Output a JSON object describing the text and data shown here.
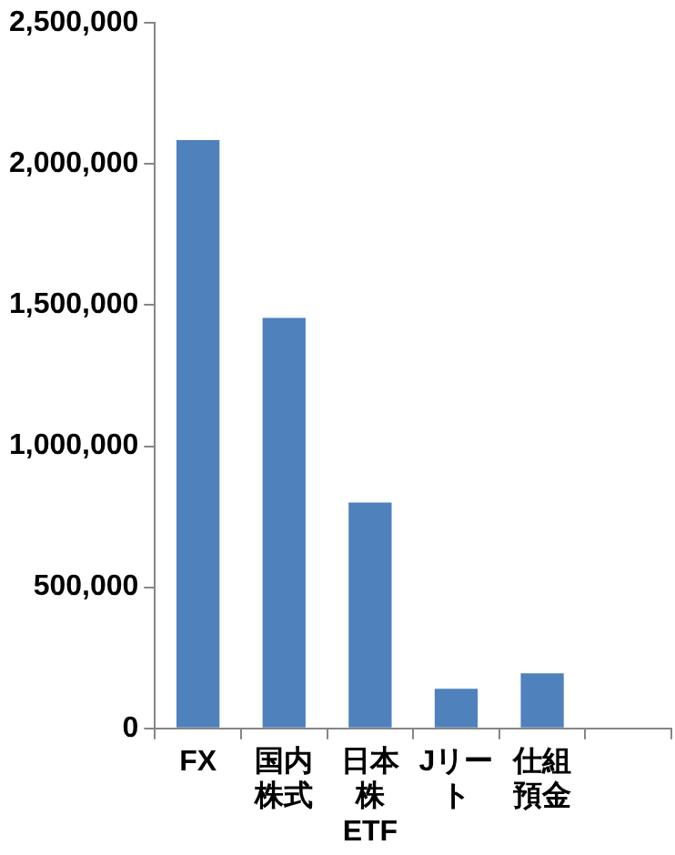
{
  "chart_data": {
    "type": "bar",
    "categories": [
      "FX",
      "国内株式",
      "日本株ETF",
      "Jリート",
      "仕組預金",
      null
    ],
    "values": [
      2085000,
      1455000,
      800000,
      140000,
      195000,
      null
    ],
    "color": "#4f81bd",
    "ylim": [
      0,
      2500000
    ],
    "yticks": [
      {
        "value": 0,
        "label": "0"
      },
      {
        "value": 500000,
        "label": "500,000"
      },
      {
        "value": 1000000,
        "label": "1,000,000"
      },
      {
        "value": 1500000,
        "label": "1,500,000"
      },
      {
        "value": 2000000,
        "label": "2,000,000"
      },
      {
        "value": 2500000,
        "label": "2,500,000"
      }
    ],
    "grid": false,
    "legend": false
  }
}
